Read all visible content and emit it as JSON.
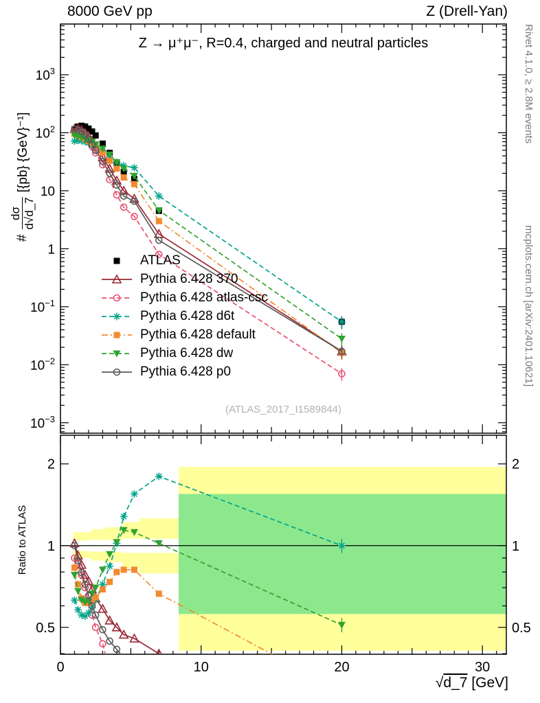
{
  "header": {
    "left": "8000 GeV pp",
    "right": "Z (Drell-Yan)"
  },
  "side_notes": {
    "top": "Rivet 4.1.0, ≥ 2.8M events",
    "bottom": "mcplots.cern.ch [arXiv:2401.10621]"
  },
  "main_panel": {
    "title": "Z → μ⁺μ⁻, R=0.4, charged and neutral particles",
    "watermark": "(ATLAS_2017_I1589844)",
    "ylabel": {
      "prefix": "#",
      "numerator": "dσ",
      "denominator_prefix": "d√",
      "denominator_arg": "d_7",
      "units": "[{pb} {GeV}⁻¹]"
    }
  },
  "ratio_panel": {
    "ylabel": "Ratio to ATLAS"
  },
  "xaxis": {
    "sqrt": "√",
    "arg": "d_7",
    "units": " [GeV]"
  },
  "chart_data": {
    "type": "line",
    "x_range": [
      0,
      31.7
    ],
    "x_ticks": [
      0,
      10,
      20,
      30
    ],
    "main": {
      "y_scale": "log",
      "y_range": [
        0.00066,
        7500
      ],
      "y_label_exponents": [
        -3,
        -2,
        -1,
        0,
        1,
        2,
        3
      ]
    },
    "ratio": {
      "y_scale": "log",
      "y_range": [
        0.398,
        2.55
      ],
      "y_ticks_labeled": [
        0.5,
        1,
        2
      ],
      "y_ticks_minor": [
        0.4,
        0.6,
        0.7,
        0.8,
        0.9
      ],
      "reference_y": 1
    },
    "bands": {
      "yellow_color": "#ffff9c",
      "green_color": "#8de88d",
      "white_color": "#ffffff",
      "yellow": [
        [
          0.9,
          2.2,
          0.9,
          1.12
        ],
        [
          2.2,
          3.2,
          0.88,
          1.15
        ],
        [
          3.2,
          4.4,
          0.87,
          1.17
        ],
        [
          4.4,
          5.6,
          0.83,
          1.22
        ],
        [
          5.6,
          8.4,
          0.79,
          1.26
        ],
        [
          8.4,
          31.7,
          0.41,
          1.95
        ]
      ],
      "white_gap": [
        [
          0.9,
          2.2,
          0.955,
          1.045
        ],
        [
          2.2,
          4.4,
          0.95,
          1.05
        ],
        [
          4.4,
          8.4,
          0.94,
          1.06
        ]
      ],
      "green": [
        [
          8.4,
          31.7,
          0.56,
          1.55
        ]
      ]
    },
    "series": [
      {
        "id": "atlas",
        "label": "ATLAS",
        "color": "#000000",
        "marker": "square-filled",
        "line": "none",
        "err_frac": 0.09,
        "points_main": [
          [
            1,
            115
          ],
          [
            1.25,
            128
          ],
          [
            1.5,
            132
          ],
          [
            1.75,
            128
          ],
          [
            2,
            118
          ],
          [
            2.25,
            105
          ],
          [
            2.5,
            90
          ],
          [
            3,
            65
          ],
          [
            3.5,
            45
          ],
          [
            4,
            30
          ],
          [
            4.5,
            21
          ],
          [
            5.25,
            16
          ],
          [
            7,
            4.5
          ],
          [
            20,
            0.055
          ]
        ],
        "points_ratio": []
      },
      {
        "id": "pythia-370",
        "label": "Pythia 6.428 370",
        "color": "#9a2834",
        "marker": "triangle-open",
        "line": "solid",
        "points_main": [
          [
            1,
            117
          ],
          [
            1.25,
            118
          ],
          [
            1.5,
            112
          ],
          [
            1.75,
            100
          ],
          [
            2,
            87
          ],
          [
            2.25,
            72
          ],
          [
            2.5,
            58
          ],
          [
            3,
            38
          ],
          [
            3.5,
            24
          ],
          [
            4,
            15
          ],
          [
            4.5,
            10
          ],
          [
            5.25,
            7.3
          ],
          [
            7,
            1.8
          ],
          [
            20,
            0.017
          ]
        ],
        "points_ratio": [
          [
            1,
            1.02
          ],
          [
            1.25,
            0.92
          ],
          [
            1.5,
            0.85
          ],
          [
            1.75,
            0.78
          ],
          [
            2,
            0.74
          ],
          [
            2.25,
            0.69
          ],
          [
            2.5,
            0.64
          ],
          [
            3,
            0.585
          ],
          [
            3.5,
            0.53
          ],
          [
            4,
            0.5
          ],
          [
            4.5,
            0.47
          ],
          [
            5.25,
            0.455
          ],
          [
            7,
            0.4
          ],
          [
            8.5,
            0.36
          ]
        ]
      },
      {
        "id": "pythia-atlas-csc",
        "label": "Pythia 6.428 atlas-csc",
        "color": "#e8506e",
        "marker": "circle-open",
        "line": "dashed",
        "points_main": [
          [
            1,
            103
          ],
          [
            1.25,
            110
          ],
          [
            1.5,
            103
          ],
          [
            1.75,
            89
          ],
          [
            2,
            74
          ],
          [
            2.25,
            58
          ],
          [
            2.5,
            45
          ],
          [
            3,
            28
          ],
          [
            3.5,
            15.5
          ],
          [
            4,
            8.5
          ],
          [
            4.5,
            5.2
          ],
          [
            5.25,
            3.6
          ],
          [
            7,
            0.8
          ],
          [
            20,
            0.007
          ]
        ],
        "points_ratio": [
          [
            1,
            0.9
          ],
          [
            1.25,
            0.86
          ],
          [
            1.5,
            0.78
          ],
          [
            1.75,
            0.7
          ],
          [
            2,
            0.625
          ],
          [
            2.25,
            0.555
          ],
          [
            2.5,
            0.5
          ],
          [
            3,
            0.435
          ],
          [
            3.5,
            0.345
          ]
        ]
      },
      {
        "id": "pythia-d6t",
        "label": "Pythia 6.428 d6t",
        "color": "#00a38b",
        "marker": "asterisk",
        "line": "dashed",
        "points_main": [
          [
            1,
            72
          ],
          [
            1.25,
            74
          ],
          [
            1.5,
            73
          ],
          [
            1.75,
            70
          ],
          [
            2,
            67
          ],
          [
            2.25,
            62
          ],
          [
            2.5,
            57
          ],
          [
            3,
            47
          ],
          [
            3.5,
            38
          ],
          [
            4,
            31
          ],
          [
            4.5,
            27
          ],
          [
            5.25,
            25
          ],
          [
            7,
            8.1
          ],
          [
            20,
            0.055
          ]
        ],
        "points_ratio": [
          [
            1,
            0.63
          ],
          [
            1.25,
            0.58
          ],
          [
            1.5,
            0.555
          ],
          [
            1.75,
            0.55
          ],
          [
            2,
            0.565
          ],
          [
            2.25,
            0.59
          ],
          [
            2.5,
            0.63
          ],
          [
            3,
            0.72
          ],
          [
            3.5,
            0.84
          ],
          [
            4,
            1.02
          ],
          [
            4.5,
            1.28
          ],
          [
            5.25,
            1.55
          ],
          [
            7,
            1.8
          ],
          [
            20,
            1.0
          ]
        ]
      },
      {
        "id": "pythia-default",
        "label": "Pythia 6.428 default",
        "color": "#f28b30",
        "marker": "square-filled",
        "line": "dashdot",
        "points_main": [
          [
            1,
            96
          ],
          [
            1.25,
            92
          ],
          [
            1.5,
            84
          ],
          [
            1.75,
            79
          ],
          [
            2,
            72
          ],
          [
            2.25,
            66
          ],
          [
            2.5,
            58
          ],
          [
            3,
            45
          ],
          [
            3.5,
            33
          ],
          [
            4,
            24
          ],
          [
            4.5,
            17
          ],
          [
            5.25,
            13
          ],
          [
            7,
            3.0
          ],
          [
            20,
            0.016
          ]
        ],
        "points_ratio": [
          [
            1,
            0.83
          ],
          [
            1.25,
            0.72
          ],
          [
            1.5,
            0.64
          ],
          [
            1.75,
            0.615
          ],
          [
            2,
            0.615
          ],
          [
            2.25,
            0.625
          ],
          [
            2.5,
            0.645
          ],
          [
            3,
            0.69
          ],
          [
            3.5,
            0.735
          ],
          [
            4,
            0.8
          ],
          [
            4.5,
            0.815
          ],
          [
            5.25,
            0.815
          ],
          [
            7,
            0.665
          ],
          [
            20,
            0.29
          ]
        ]
      },
      {
        "id": "pythia-dw",
        "label": "Pythia 6.428 dw",
        "color": "#2fa32f",
        "marker": "triangle-down-filled",
        "line": "dashed",
        "points_main": [
          [
            1,
            90
          ],
          [
            1.25,
            87
          ],
          [
            1.5,
            83
          ],
          [
            1.75,
            79
          ],
          [
            2,
            74
          ],
          [
            2.25,
            70
          ],
          [
            2.5,
            63
          ],
          [
            3,
            53
          ],
          [
            3.5,
            42
          ],
          [
            4,
            31
          ],
          [
            4.5,
            24
          ],
          [
            5.25,
            18
          ],
          [
            7,
            4.6
          ],
          [
            20,
            0.028
          ]
        ],
        "points_ratio": [
          [
            1,
            0.78
          ],
          [
            1.25,
            0.68
          ],
          [
            1.5,
            0.63
          ],
          [
            1.75,
            0.62
          ],
          [
            2,
            0.625
          ],
          [
            2.25,
            0.665
          ],
          [
            2.5,
            0.7
          ],
          [
            3,
            0.815
          ],
          [
            3.5,
            0.93
          ],
          [
            4,
            1.03
          ],
          [
            4.5,
            1.14
          ],
          [
            5.25,
            1.12
          ],
          [
            7,
            1.02
          ],
          [
            20,
            0.51
          ]
        ]
      },
      {
        "id": "pythia-p0",
        "label": "Pythia 6.428 p0",
        "color": "#5a5a5a",
        "marker": "circle-open",
        "line": "solid",
        "points_main": [
          [
            1,
            115
          ],
          [
            1.25,
            112
          ],
          [
            1.5,
            105
          ],
          [
            1.75,
            92
          ],
          [
            2,
            77
          ],
          [
            2.25,
            63
          ],
          [
            2.5,
            50
          ],
          [
            3,
            32
          ],
          [
            3.5,
            20
          ],
          [
            4,
            12.5
          ],
          [
            4.5,
            8.1
          ],
          [
            5.25,
            6.6
          ],
          [
            7,
            1.4
          ],
          [
            20,
            0.017
          ]
        ],
        "points_ratio": [
          [
            1,
            1.0
          ],
          [
            1.25,
            0.88
          ],
          [
            1.5,
            0.795
          ],
          [
            1.75,
            0.72
          ],
          [
            2,
            0.655
          ],
          [
            2.25,
            0.6
          ],
          [
            2.5,
            0.555
          ],
          [
            3,
            0.49
          ],
          [
            3.5,
            0.445
          ],
          [
            4,
            0.415
          ],
          [
            4.5,
            0.385
          ]
        ]
      }
    ]
  }
}
